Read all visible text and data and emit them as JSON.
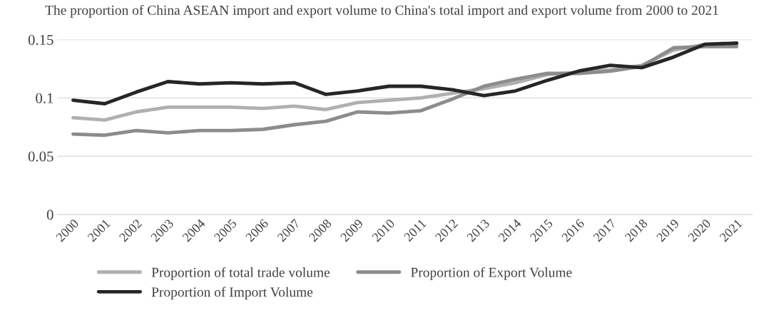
{
  "chart_data": {
    "type": "line",
    "title": "The proportion of China ASEAN import and export volume to China's total import and export volume from 2000 to 2021",
    "categories": [
      "2000",
      "2001",
      "2002",
      "2003",
      "2004",
      "2005",
      "2006",
      "2007",
      "2008",
      "2009",
      "2010",
      "2011",
      "2012",
      "2013",
      "2014",
      "2015",
      "2016",
      "2017",
      "2018",
      "2019",
      "2020",
      "2021"
    ],
    "series": [
      {
        "name": "Proportion of total trade volume",
        "color": "#b0b0b0",
        "values": [
          0.083,
          0.081,
          0.088,
          0.092,
          0.092,
          0.092,
          0.091,
          0.093,
          0.09,
          0.096,
          0.098,
          0.1,
          0.104,
          0.108,
          0.113,
          0.12,
          0.122,
          0.124,
          0.128,
          0.141,
          0.146,
          0.146
        ]
      },
      {
        "name": "Proportion of Export Volume",
        "color": "#8c8c8c",
        "values": [
          0.069,
          0.068,
          0.072,
          0.07,
          0.072,
          0.072,
          0.073,
          0.077,
          0.08,
          0.088,
          0.087,
          0.089,
          0.099,
          0.11,
          0.116,
          0.121,
          0.121,
          0.123,
          0.127,
          0.143,
          0.144,
          0.144
        ]
      },
      {
        "name": "Proportion of Import Volume",
        "color": "#262626",
        "values": [
          0.098,
          0.095,
          0.105,
          0.114,
          0.112,
          0.113,
          0.112,
          0.113,
          0.103,
          0.106,
          0.11,
          0.11,
          0.107,
          0.102,
          0.106,
          0.115,
          0.123,
          0.128,
          0.126,
          0.135,
          0.146,
          0.147
        ]
      }
    ],
    "ylim": [
      0,
      0.15
    ],
    "yticks": [
      0,
      {
        "value": 0.05,
        "label": "0.05"
      },
      {
        "value": 0.1,
        "label": "0.1"
      },
      {
        "value": 0.15,
        "label": "0.15"
      }
    ],
    "grid": "y",
    "legend": "bottom"
  }
}
